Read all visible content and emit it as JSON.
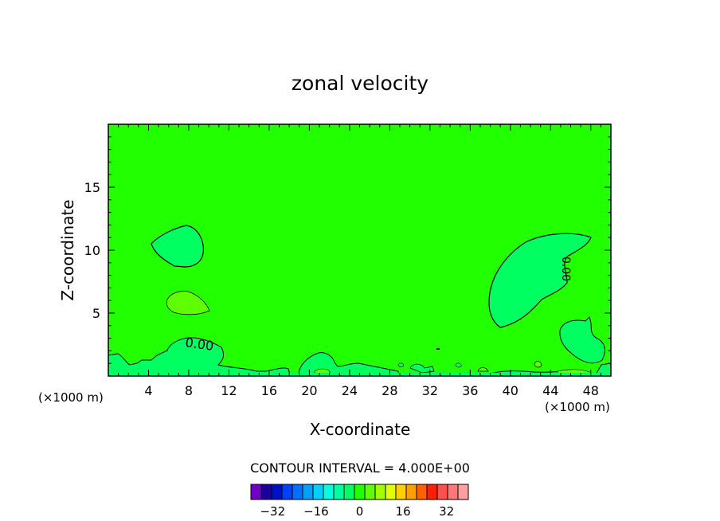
{
  "chart_data": {
    "type": "contour",
    "title": "zonal velocity",
    "xlabel": "X-coordinate",
    "ylabel": "Z-coordinate",
    "x_unit": "(×1000 m)",
    "x_unit_right": "(×1000 m)",
    "xlim": [
      0,
      50
    ],
    "ylim": [
      0,
      20
    ],
    "x_ticks": [
      4,
      8,
      12,
      16,
      20,
      24,
      28,
      32,
      36,
      40,
      44,
      48
    ],
    "y_ticks": [
      5,
      10,
      15
    ],
    "contour_label": "0.00",
    "contour_label_right": "0.00",
    "background_value_color": "#22ff00",
    "contour_interval_text": "CONTOUR INTERVAL = 4.000E+00",
    "colorbar": {
      "colors": [
        "#7000c8",
        "#1a00a0",
        "#0010c8",
        "#0040ff",
        "#0070ff",
        "#00a0ff",
        "#00d0ff",
        "#00ffe0",
        "#00ffa0",
        "#00ff60",
        "#22ff00",
        "#60ff00",
        "#a0ff00",
        "#e0ff00",
        "#ffd000",
        "#ffa000",
        "#ff6000",
        "#ff2000",
        "#ff5050",
        "#ff7878",
        "#ffa0a0"
      ],
      "tick_labels": [
        "-32",
        "-16",
        "0",
        "16",
        "32"
      ],
      "tick_values": [
        -32,
        -16,
        0,
        16,
        32
      ],
      "vmin": -40,
      "vmax": 40
    }
  }
}
